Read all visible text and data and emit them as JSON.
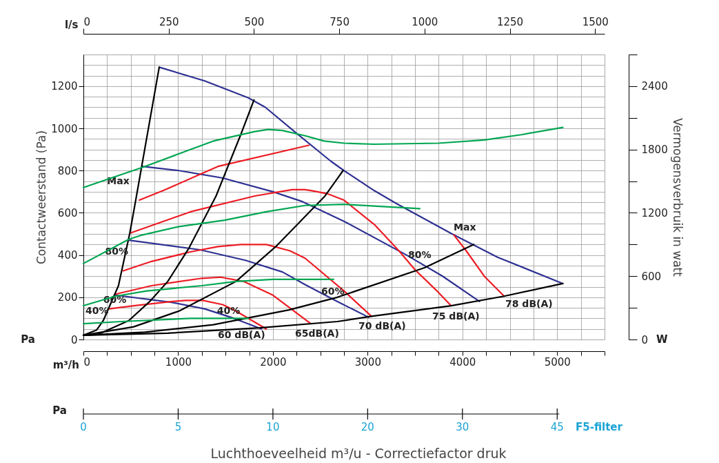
{
  "chart_data": {
    "type": "line",
    "ylabel": "Contactweerstand (Pa)",
    "y2label": "Vermogensverbruik in watt",
    "x2label": "l/s",
    "xlim": [
      0,
      5500
    ],
    "ylim": [
      0,
      1350
    ],
    "y2lim": [
      0,
      2700
    ],
    "x2lim": [
      0,
      1527.8
    ],
    "xticks": [
      0,
      {
        "value": 250,
        "label": null
      },
      {
        "value": 500,
        "label": null
      },
      {
        "value": 750,
        "label": null
      },
      1000,
      {
        "value": 1250,
        "label": null
      },
      {
        "value": 1500,
        "label": null
      },
      {
        "value": 1750,
        "label": null
      },
      2000,
      {
        "value": 2250,
        "label": null
      },
      {
        "value": 2500,
        "label": null
      },
      {
        "value": 2750,
        "label": null
      },
      3000,
      {
        "value": 3250,
        "label": null
      },
      {
        "value": 3500,
        "label": null
      },
      {
        "value": 3750,
        "label": null
      },
      4000,
      {
        "value": 4250,
        "label": null
      },
      {
        "value": 4500,
        "label": null
      },
      {
        "value": 4750,
        "label": null
      },
      5000,
      {
        "value": 5250,
        "label": null
      },
      {
        "value": 5500,
        "label": null
      }
    ],
    "yticks": [
      0,
      {
        "value": 50,
        "label": null
      },
      {
        "value": 100,
        "label": null
      },
      {
        "value": 150,
        "label": null
      },
      200,
      {
        "value": 250,
        "label": null
      },
      {
        "value": 300,
        "label": null
      },
      {
        "value": 350,
        "label": null
      },
      400,
      {
        "value": 450,
        "label": null
      },
      {
        "value": 500,
        "label": null
      },
      {
        "value": 550,
        "label": null
      },
      600,
      {
        "value": 650,
        "label": null
      },
      {
        "value": 700,
        "label": null
      },
      {
        "value": 750,
        "label": null
      },
      800,
      {
        "value": 850,
        "label": null
      },
      {
        "value": 900,
        "label": null
      },
      {
        "value": 950,
        "label": null
      },
      1000,
      {
        "value": 1050,
        "label": null
      },
      {
        "value": 1100,
        "label": null
      },
      {
        "value": 1150,
        "label": null
      },
      1200,
      {
        "value": 1250,
        "label": null
      },
      {
        "value": 1300,
        "label": null
      },
      {
        "value": 1350,
        "label": null
      }
    ],
    "y2ticks": [
      0,
      {
        "value": 300,
        "label": null
      },
      600,
      {
        "value": 900,
        "label": null
      },
      1200,
      {
        "value": 1500,
        "label": null
      },
      1800,
      {
        "value": 2100,
        "label": null
      },
      2400,
      {
        "value": 2700,
        "label": null
      }
    ],
    "x2ticks": [
      0,
      250,
      500,
      750,
      1000,
      1250,
      1500
    ],
    "grid": true,
    "legend": false,
    "marker": "none",
    "line_style": "solid",
    "series": [
      {
        "color": "#2e3192",
        "x": [
          800,
          1280,
          1740,
          1920,
          2240,
          2610,
          2750,
          3070,
          3300,
          3890,
          4370,
          5060
        ],
        "values": [
          1290,
          1225,
          1145,
          1100,
          980,
          845,
          800,
          705,
          645,
          500,
          390,
          265
        ]
      },
      {
        "color": "#2e3192",
        "x": [
          620,
          1010,
          1470,
          2000,
          2300,
          2750,
          3410,
          3790,
          4180
        ],
        "values": [
          820,
          800,
          765,
          700,
          655,
          560,
          400,
          300,
          180
        ]
      },
      {
        "color": "#2e3192",
        "x": [
          480,
          1230,
          1710,
          2100,
          2340,
          2680,
          3010
        ],
        "values": [
          470,
          425,
          375,
          320,
          260,
          180,
          105
        ]
      },
      {
        "color": "#2e3192",
        "x": [
          340,
          940,
          1280,
          1590,
          1880
        ],
        "values": [
          210,
          175,
          145,
          100,
          50
        ]
      },
      {
        "color": "#ed1c24",
        "x": [
          590,
          840,
          1420,
          2380
        ],
        "values": [
          660,
          705,
          820,
          920
        ]
      },
      {
        "color": "#ed1c24",
        "x": [
          3910,
          4040,
          4230,
          4440
        ],
        "values": [
          495,
          420,
          300,
          205
        ]
      },
      {
        "color": "#ed1c24",
        "x": [
          500,
          1130,
          1810,
          2200,
          2340,
          2410,
          2580,
          2750,
          3070,
          3330,
          3500,
          3720,
          3880
        ],
        "values": [
          505,
          605,
          680,
          710,
          710,
          705,
          690,
          660,
          545,
          420,
          330,
          235,
          160
        ]
      },
      {
        "color": "#ed1c24",
        "x": [
          420,
          720,
          1130,
          1420,
          1660,
          1930,
          2180,
          2340,
          2750,
          3040
        ],
        "values": [
          325,
          370,
          415,
          440,
          450,
          450,
          420,
          385,
          230,
          110
        ]
      },
      {
        "color": "#ed1c24",
        "x": [
          340,
          720,
          1250,
          1450,
          1690,
          2000,
          2400
        ],
        "values": [
          215,
          255,
          290,
          295,
          275,
          210,
          75
        ]
      },
      {
        "color": "#ed1c24",
        "x": [
          270,
          530,
          940,
          1080,
          1260,
          1470,
          1610,
          1930
        ],
        "values": [
          145,
          160,
          180,
          185,
          185,
          165,
          135,
          50
        ]
      },
      {
        "color": "#000000",
        "x": [
          0,
          140,
          210,
          370,
          490,
          560,
          800
        ],
        "values": [
          20,
          45,
          90,
          255,
          505,
          680,
          1290
        ]
      },
      {
        "color": "#000000",
        "x": [
          0,
          160,
          480,
          700,
          890,
          1110,
          1400,
          1660,
          1800
        ],
        "values": [
          20,
          25,
          90,
          180,
          275,
          430,
          680,
          970,
          1135
        ]
      },
      {
        "color": "#000000",
        "x": [
          0,
          530,
          1010,
          1610,
          2030,
          2550,
          2740
        ],
        "values": [
          20,
          60,
          135,
          275,
          440,
          680,
          800
        ]
      },
      {
        "color": "#000000",
        "x": [
          0,
          650,
          1370,
          2170,
          2680,
          3600,
          4120
        ],
        "values": [
          20,
          35,
          70,
          140,
          200,
          340,
          450
        ]
      },
      {
        "color": "#000000",
        "x": [
          0,
          890,
          1860,
          2680,
          3040,
          3880,
          4440,
          5060
        ],
        "values": [
          20,
          30,
          55,
          85,
          110,
          160,
          205,
          265
        ]
      },
      {
        "color": "#00a651",
        "axis": "y2",
        "x": [
          0,
          620,
          1370,
          1810,
          1950,
          2100,
          2340,
          2540,
          2750,
          3070,
          3750,
          4230,
          4620,
          5060
        ],
        "values": [
          1440,
          1630,
          1880,
          1970,
          1990,
          1980,
          1930,
          1880,
          1860,
          1850,
          1860,
          1890,
          1940,
          2010
        ]
      },
      {
        "color": "#00a651",
        "axis": "y2",
        "x": [
          0,
          480,
          620,
          1010,
          1490,
          1930,
          2340,
          2750,
          3550
        ],
        "values": [
          720,
          950,
          990,
          1070,
          1130,
          1210,
          1270,
          1280,
          1240
        ]
      },
      {
        "color": "#00a651",
        "axis": "y2",
        "x": [
          0,
          340,
          670,
          1250,
          1610,
          2000,
          2640
        ],
        "values": [
          320,
          410,
          460,
          510,
          550,
          570,
          570
        ]
      },
      {
        "color": "#00a651",
        "axis": "y2",
        "x": [
          0,
          400,
          1130,
          1740
        ],
        "values": [
          150,
          170,
          200,
          200
        ]
      }
    ],
    "annotations": [
      {
        "text": "Max",
        "x": 250,
        "y": 750
      },
      {
        "text": "80%",
        "x": 230,
        "y": 415
      },
      {
        "text": "60%",
        "x": 210,
        "y": 185
      },
      {
        "text": "40%",
        "x": 1410,
        "y": 135
      },
      {
        "text": "60%",
        "x": 2510,
        "y": 225
      },
      "40%",
      "80%",
      "Max",
      "60 dB(A)",
      "65dB(A)",
      "70 dB(A)",
      "75 dB(A)",
      "78 dB(A)",
      "m³/h",
      "Pa",
      "W",
      "Pa",
      "0",
      "5",
      "10",
      "20",
      "30",
      "45",
      "F5-filter",
      "Luchthoeveelheid m³/u - Correctiefactor druk"
    ]
  }
}
